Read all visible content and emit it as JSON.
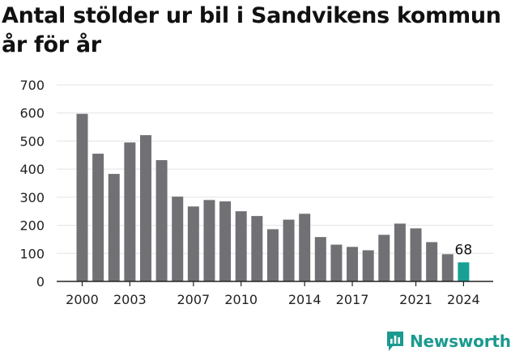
{
  "title": "Antal stölder ur bil i Sandvikens kommun år för år",
  "brand": {
    "name": "Newsworthy",
    "icon": "newsworthy-logo-icon",
    "color": "#1b9a8f"
  },
  "chart_data": {
    "type": "bar",
    "title": "Antal stölder ur bil i Sandvikens kommun år för år",
    "xlabel": "",
    "ylabel": "",
    "categories": [
      2000,
      2001,
      2002,
      2003,
      2004,
      2005,
      2006,
      2007,
      2008,
      2009,
      2010,
      2011,
      2012,
      2013,
      2014,
      2015,
      2016,
      2017,
      2018,
      2019,
      2020,
      2021,
      2022,
      2023,
      2024
    ],
    "values": [
      597,
      455,
      383,
      495,
      521,
      432,
      302,
      267,
      290,
      285,
      250,
      233,
      186,
      220,
      241,
      158,
      131,
      123,
      111,
      166,
      206,
      189,
      140,
      97,
      68
    ],
    "x_tick_labels": [
      2000,
      2003,
      2007,
      2010,
      2014,
      2017,
      2021,
      2024
    ],
    "y_ticks": [
      0,
      100,
      200,
      300,
      400,
      500,
      600,
      700
    ],
    "ylim": [
      0,
      700
    ],
    "grid": "horizontal",
    "bar_color": "#717075",
    "highlight_color": "#18a095",
    "highlight_category": 2024,
    "data_labels": [
      {
        "category": 2024,
        "text": "68"
      }
    ]
  }
}
